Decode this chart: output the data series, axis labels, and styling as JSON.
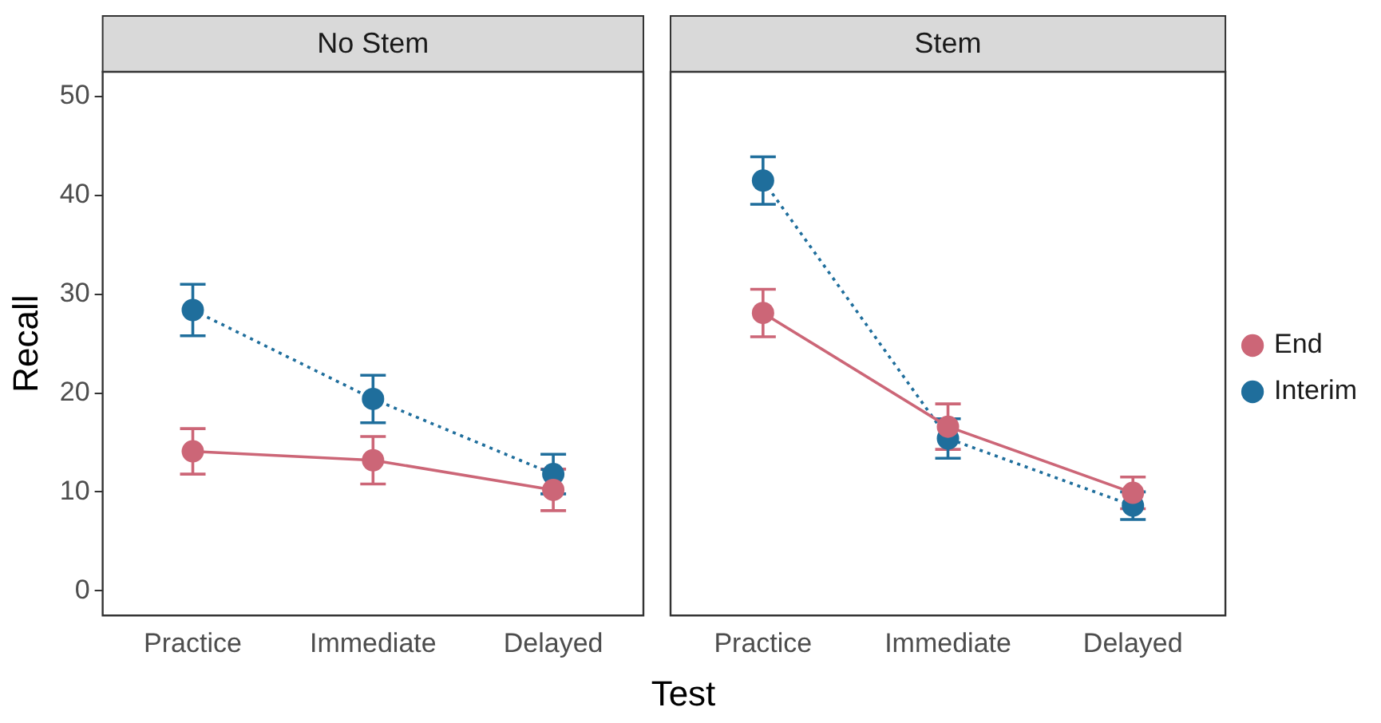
{
  "chart_data": [
    {
      "type": "line",
      "title": "No Stem",
      "xlabel": "Test",
      "ylabel": "Recall",
      "categories": [
        "Practice",
        "Immediate",
        "Delayed"
      ],
      "ylim": [
        -2.5,
        52.5
      ],
      "yticks": [
        0,
        10,
        20,
        30,
        40,
        50
      ],
      "grid": false,
      "legend": false,
      "marker": "circle",
      "series": [
        {
          "color": "#cc6677",
          "line_style": "solid",
          "values": [
            14.1,
            13.2,
            10.2
          ],
          "errors": [
            2.3,
            2.4,
            2.1
          ]
        },
        {
          "color": "#1f6e9c",
          "line_style": "dotted",
          "values": [
            28.4,
            19.4,
            11.8
          ],
          "errors": [
            2.6,
            2.4,
            2.0
          ]
        }
      ]
    },
    {
      "type": "line",
      "title": "Stem",
      "categories": [
        "Practice",
        "Immediate",
        "Delayed"
      ],
      "ylim": [
        -2.5,
        52.5
      ],
      "yticks": [
        0,
        10,
        20,
        30,
        40,
        50
      ],
      "tick_labels": "x",
      "grid": false,
      "legend": "right",
      "marker": "circle",
      "series": [
        {
          "name": "End",
          "color": "#cc6677",
          "line_style": "solid",
          "values": [
            28.1,
            16.6,
            9.9
          ],
          "errors": [
            2.4,
            2.3,
            1.6
          ]
        },
        {
          "name": "Interim",
          "color": "#1f6e9c",
          "line_style": "dotted",
          "values": [
            41.5,
            15.4,
            8.6
          ],
          "errors": [
            2.4,
            2.0,
            1.4
          ]
        }
      ]
    }
  ]
}
